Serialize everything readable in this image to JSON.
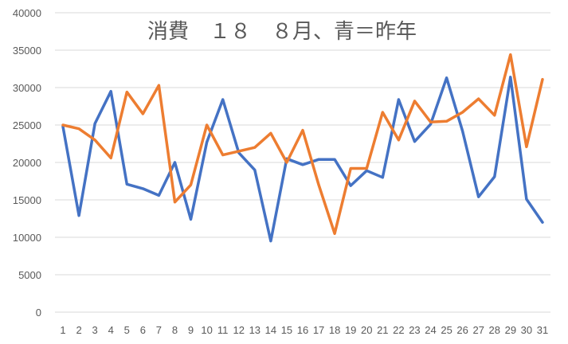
{
  "chart_data": {
    "type": "line",
    "title": "消費　１８　８月、青＝昨年",
    "xlabel": "",
    "ylabel": "",
    "categories": [
      "1",
      "2",
      "3",
      "4",
      "5",
      "6",
      "7",
      "8",
      "9",
      "10",
      "11",
      "12",
      "13",
      "14",
      "15",
      "16",
      "17",
      "18",
      "19",
      "20",
      "21",
      "22",
      "23",
      "24",
      "25",
      "26",
      "27",
      "28",
      "29",
      "30",
      "31"
    ],
    "ylim": [
      0,
      40000
    ],
    "yticks": [
      0,
      5000,
      10000,
      15000,
      20000,
      25000,
      30000,
      35000,
      40000
    ],
    "grid": true,
    "legend": "none",
    "series": [
      {
        "color": "#4472C4",
        "values": [
          24800,
          12900,
          25200,
          29500,
          17100,
          16500,
          15600,
          20000,
          12400,
          22700,
          28400,
          21300,
          19000,
          9500,
          20500,
          19700,
          20400,
          20400,
          16900,
          18900,
          18000,
          28400,
          22800,
          25100,
          31300,
          24200,
          15400,
          18100,
          31400,
          15100,
          12000
        ]
      },
      {
        "color": "#ED7D31",
        "values": [
          25000,
          24500,
          23000,
          20600,
          29400,
          26500,
          30300,
          14700,
          17000,
          25000,
          21000,
          21500,
          22000,
          23900,
          20000,
          24300,
          17000,
          10500,
          19200,
          19200,
          26700,
          23000,
          28200,
          25400,
          25500,
          26700,
          28500,
          26300,
          34400,
          22100,
          31100
        ]
      }
    ]
  }
}
